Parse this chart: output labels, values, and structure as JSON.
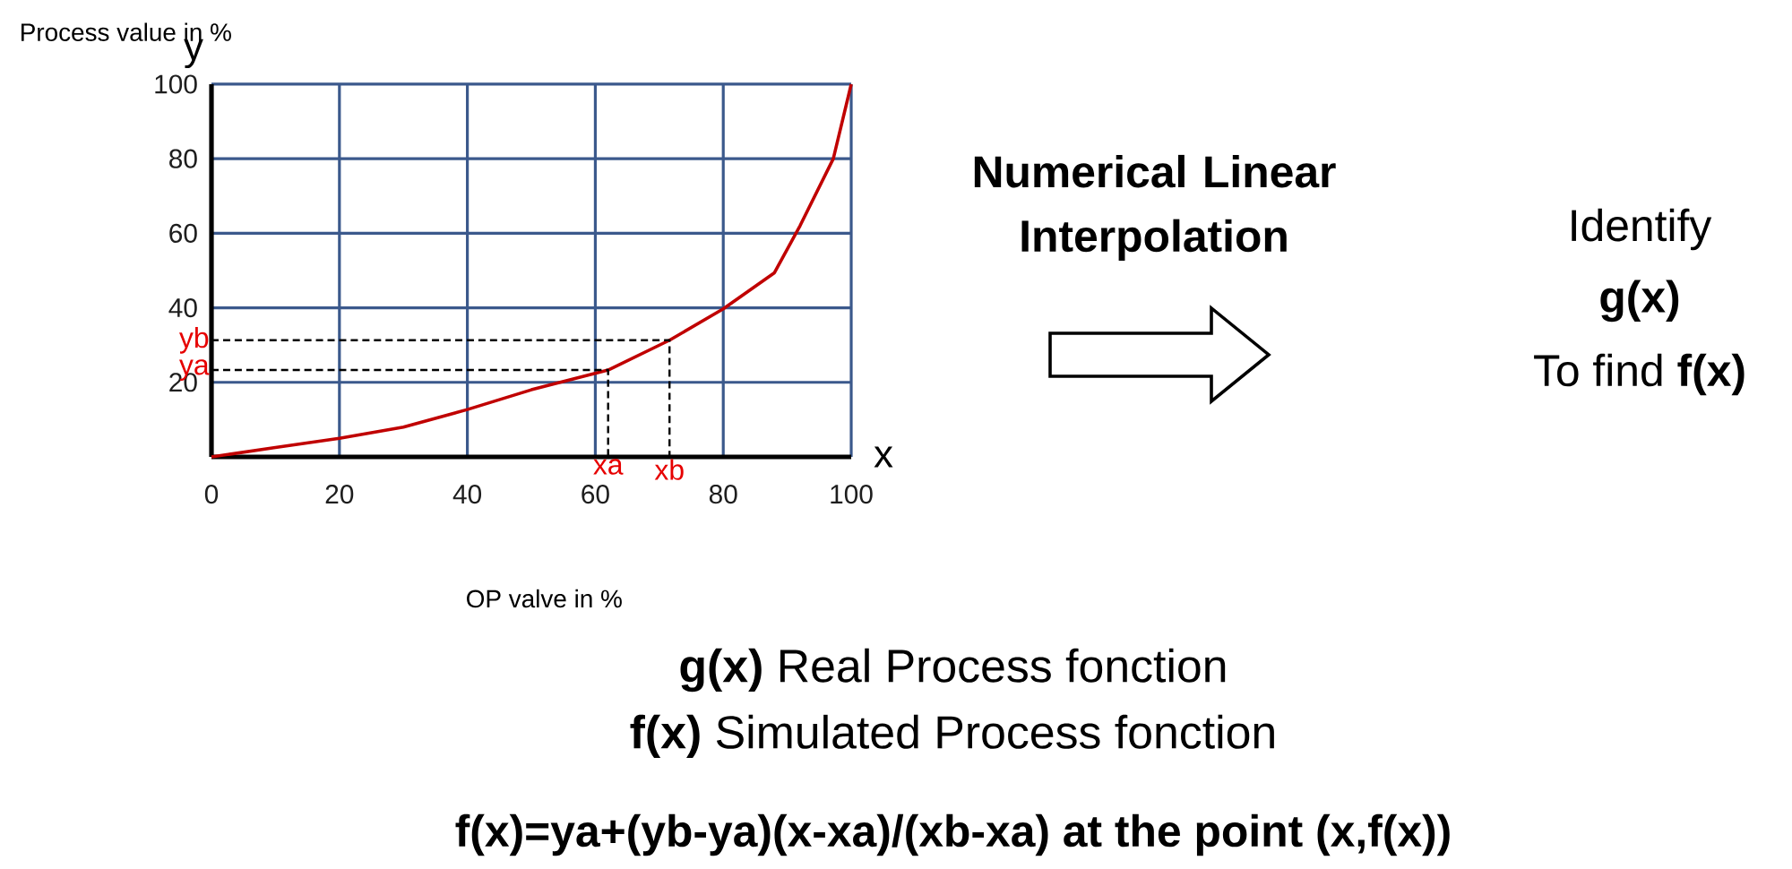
{
  "chart_data": {
    "type": "line",
    "ylabel": "Process value in %",
    "xlabel": "OP valve in %",
    "xlim": [
      0,
      100
    ],
    "ylim": [
      0,
      100
    ],
    "xticks": [
      0,
      20,
      40,
      60,
      80,
      100
    ],
    "yticks": [
      20,
      40,
      60,
      80,
      100
    ],
    "grid": true,
    "marker": "none",
    "series": [
      {
        "color": "#c00000",
        "line_style": "solid",
        "x": [
          0,
          10,
          20,
          30,
          40,
          50,
          62,
          71.6,
          80,
          88,
          92,
          97.2,
          100
        ],
        "values": [
          0,
          2.5,
          5,
          8,
          12.7,
          18,
          23.3,
          31.3,
          39.7,
          49.4,
          62,
          80,
          100
        ]
      },
      {
        "color": "#000000",
        "line_style": "dashed",
        "x": [
          0,
          62,
          62
        ],
        "values": [
          23.3,
          23.3,
          0
        ]
      },
      {
        "color": "#000000",
        "line_style": "dashed",
        "x": [
          0,
          71.6,
          71.6
        ],
        "values": [
          31.3,
          31.3,
          0
        ]
      }
    ],
    "annotations": [
      "x",
      "y",
      {
        "text": "xa",
        "x": 62,
        "y": 0
      },
      {
        "text": "xb",
        "x": 71.6,
        "y": 0
      },
      {
        "text": "ya",
        "x": 0,
        "y": 23.3
      },
      {
        "text": "yb",
        "x": 0,
        "y": 31.3
      },
      "Numerical Linear Interpolation",
      "Identify **g(x)**",
      "To find **f(x)**",
      "**g(x)** Real Process fonction",
      "**f(x)** Simulated Process fonction",
      "f(x)=ya+(yb-ya)(x-xa)/(xb-xa) at the point (x,f(x))"
    ]
  }
}
